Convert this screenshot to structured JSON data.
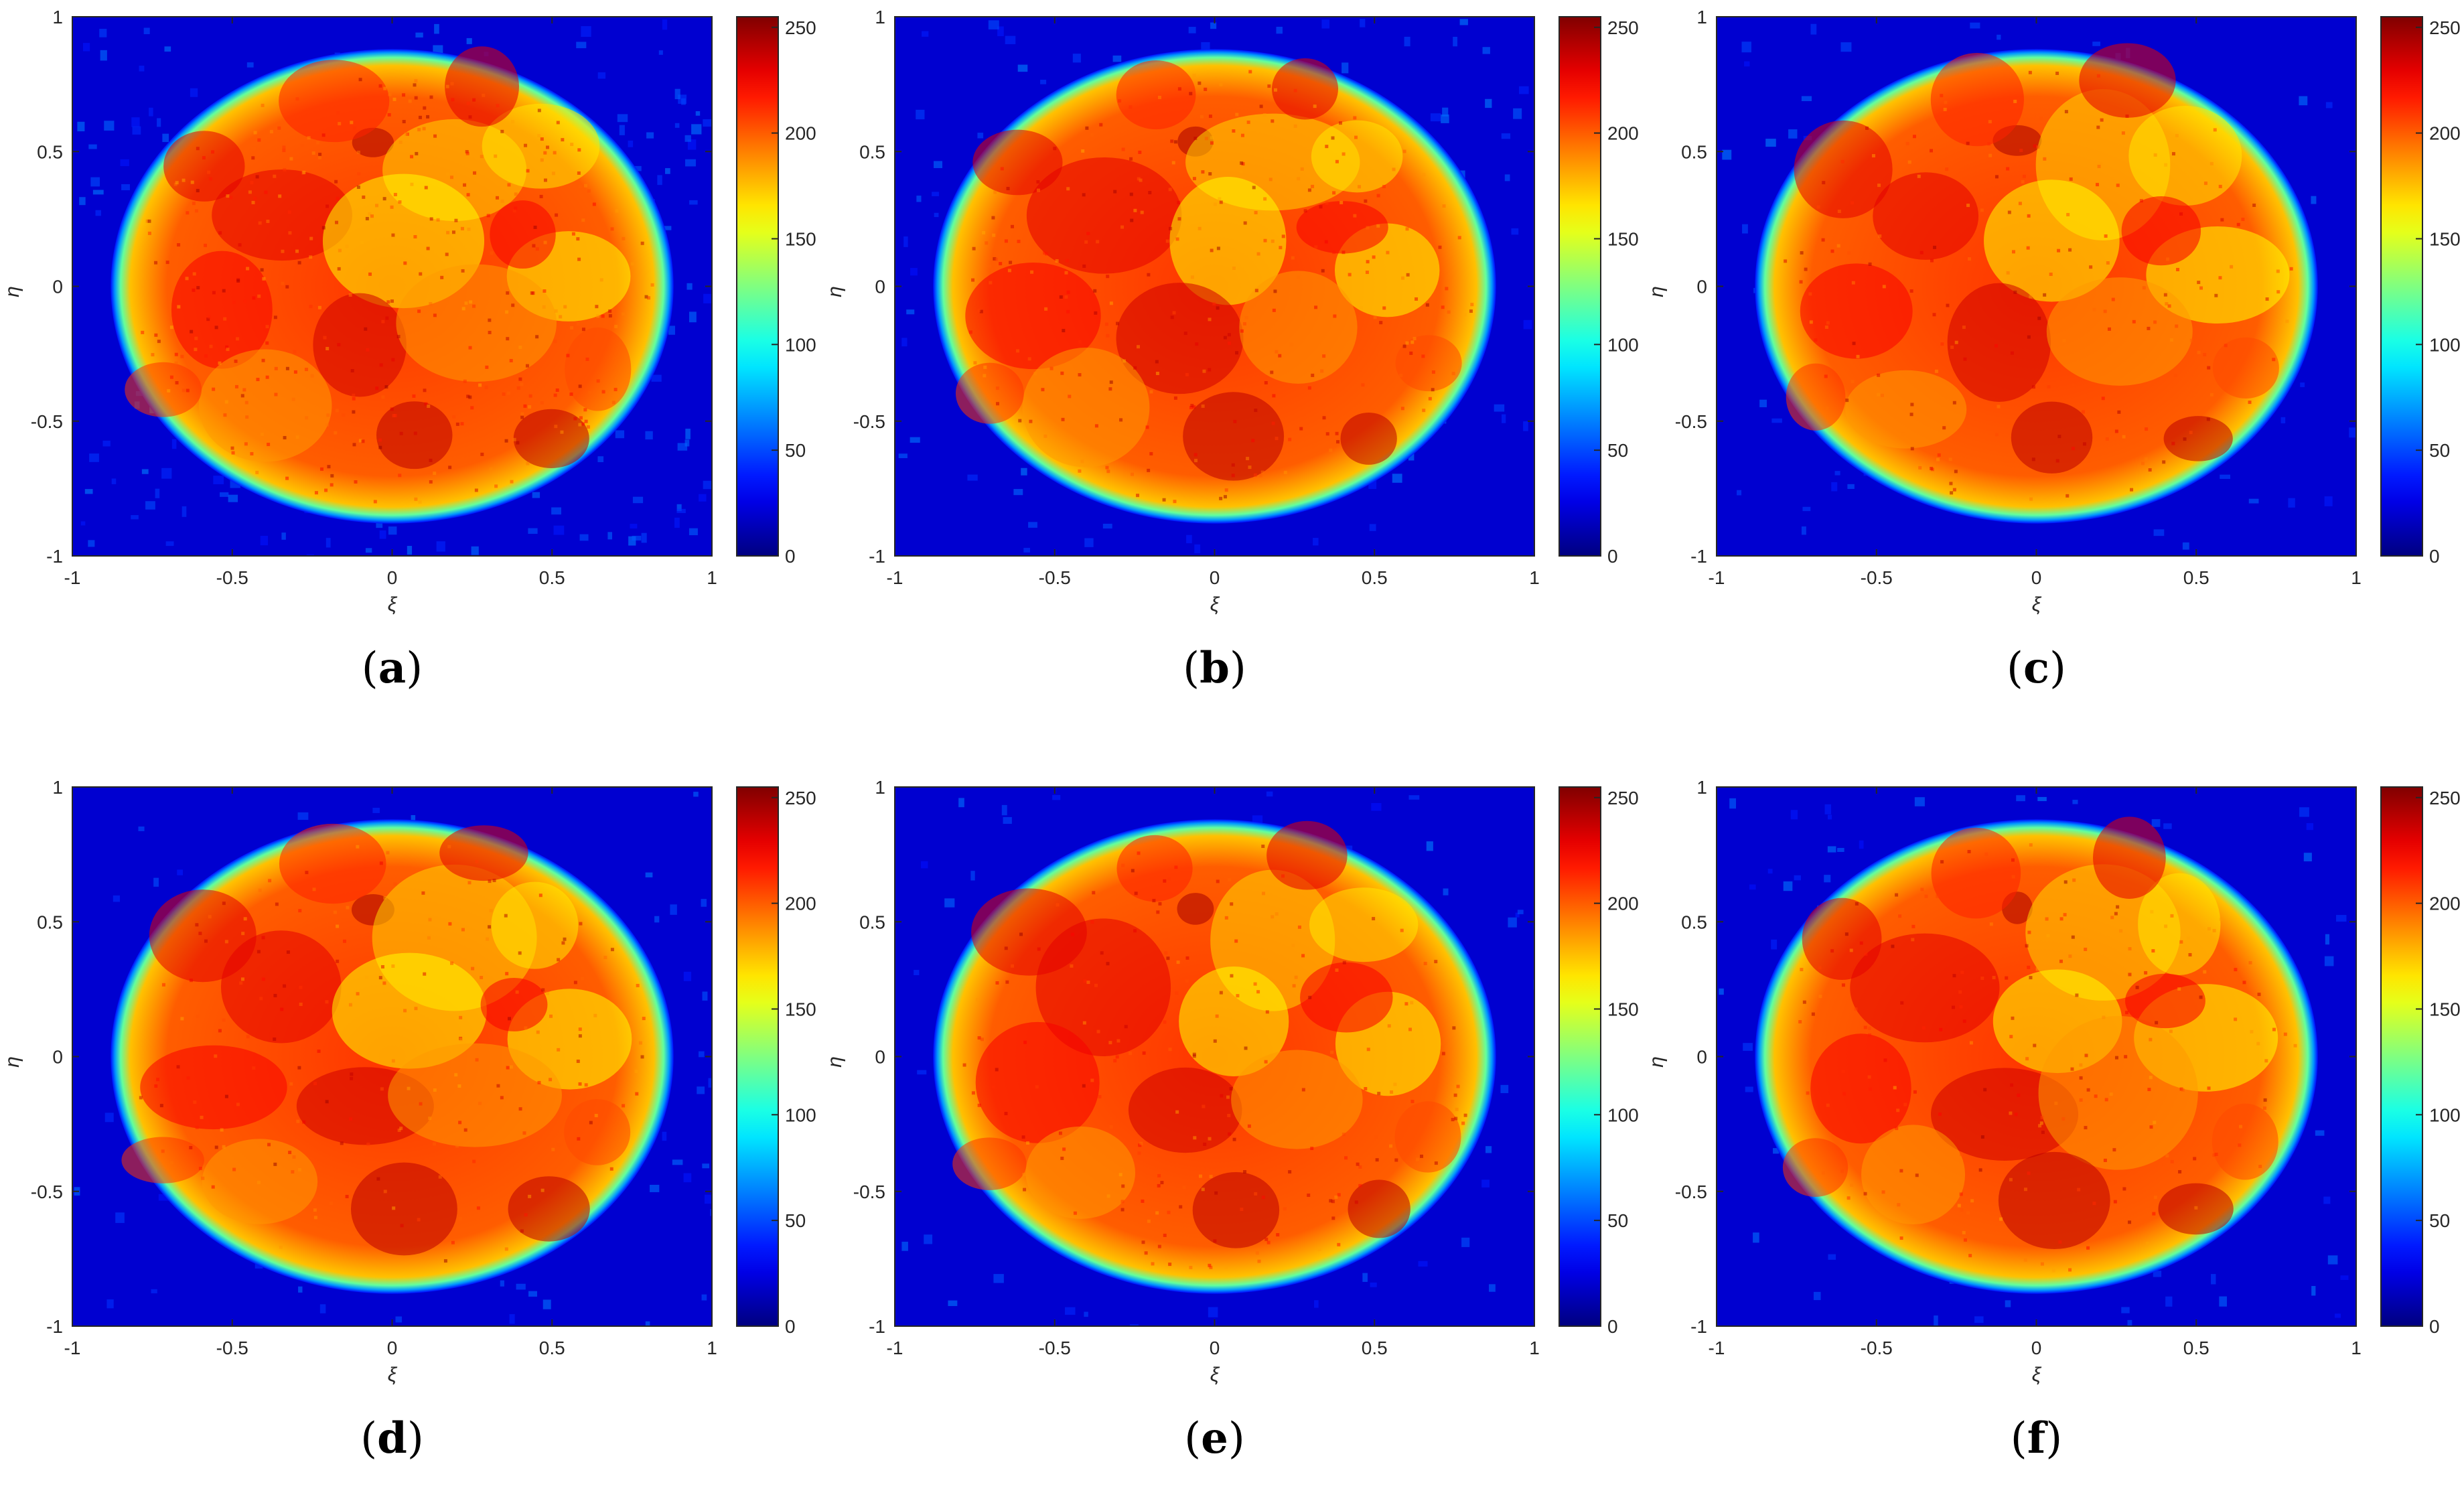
{
  "figure": {
    "panels": [
      {
        "label": "a",
        "caption": "(a)"
      },
      {
        "label": "b",
        "caption": "(b)"
      },
      {
        "label": "c",
        "caption": "(c)"
      },
      {
        "label": "d",
        "caption": "(d)"
      },
      {
        "label": "e",
        "caption": "(e)"
      },
      {
        "label": "f",
        "caption": "(f)"
      }
    ]
  },
  "chart_data": [
    {
      "type": "heatmap",
      "panel": "a",
      "xlabel": "ξ",
      "ylabel": "η",
      "xlim": [
        -1,
        1
      ],
      "ylim": [
        -1,
        1
      ],
      "xticks": [
        "-1",
        "-0.5",
        "0",
        "0.5",
        "1"
      ],
      "yticks": [
        "-1",
        "-0.5",
        "0",
        "0.5",
        "1"
      ],
      "colorbar": {
        "range": [
          0,
          255
        ],
        "ticks": [
          "0",
          "50",
          "100",
          "150",
          "200",
          "250"
        ],
        "colormap": "jet"
      },
      "noise": "high",
      "description_values": {
        "disk_radius": 0.88,
        "inside_intensity": 200,
        "background_intensity": 20
      }
    },
    {
      "type": "heatmap",
      "panel": "b",
      "xlabel": "ξ",
      "ylabel": "η",
      "xlim": [
        -1,
        1
      ],
      "ylim": [
        -1,
        1
      ],
      "xticks": [
        "-1",
        "-0.5",
        "0",
        "0.5",
        "1"
      ],
      "yticks": [
        "-1",
        "-0.5",
        "0",
        "0.5",
        "1"
      ],
      "colorbar": {
        "range": [
          0,
          255
        ],
        "ticks": [
          "0",
          "50",
          "100",
          "150",
          "200",
          "250"
        ],
        "colormap": "jet"
      },
      "noise": "medium",
      "description_values": {
        "disk_radius": 0.88,
        "inside_intensity": 200,
        "background_intensity": 20
      }
    },
    {
      "type": "heatmap",
      "panel": "c",
      "xlabel": "ξ",
      "ylabel": "η",
      "xlim": [
        -1,
        1
      ],
      "ylim": [
        -1,
        1
      ],
      "xticks": [
        "-1",
        "-0.5",
        "0",
        "0.5",
        "1"
      ],
      "yticks": [
        "-1",
        "-0.5",
        "0",
        "0.5",
        "1"
      ],
      "colorbar": {
        "range": [
          0,
          255
        ],
        "ticks": [
          "0",
          "50",
          "100",
          "150",
          "200",
          "250"
        ],
        "colormap": "jet"
      },
      "noise": "low",
      "description_values": {
        "disk_radius": 0.88,
        "inside_intensity": 200,
        "background_intensity": 20
      }
    },
    {
      "type": "heatmap",
      "panel": "d",
      "xlabel": "ξ",
      "ylabel": "η",
      "xlim": [
        -1,
        1
      ],
      "ylim": [
        -1,
        1
      ],
      "xticks": [
        "-1",
        "-0.5",
        "0",
        "0.5",
        "1"
      ],
      "yticks": [
        "-1",
        "-0.5",
        "0",
        "0.5",
        "1"
      ],
      "colorbar": {
        "range": [
          0,
          255
        ],
        "ticks": [
          "0",
          "50",
          "100",
          "150",
          "200",
          "250"
        ],
        "colormap": "jet"
      },
      "noise": "low",
      "description_values": {
        "disk_radius": 0.88,
        "inside_intensity": 200,
        "background_intensity": 20
      }
    },
    {
      "type": "heatmap",
      "panel": "e",
      "xlabel": "ξ",
      "ylabel": "η",
      "xlim": [
        -1,
        1
      ],
      "ylim": [
        -1,
        1
      ],
      "xticks": [
        "-1",
        "-0.5",
        "0",
        "0.5",
        "1"
      ],
      "yticks": [
        "-1",
        "-0.5",
        "0",
        "0.5",
        "1"
      ],
      "colorbar": {
        "range": [
          0,
          255
        ],
        "ticks": [
          "0",
          "50",
          "100",
          "150",
          "200",
          "250"
        ],
        "colormap": "jet"
      },
      "noise": "low",
      "description_values": {
        "disk_radius": 0.88,
        "inside_intensity": 200,
        "background_intensity": 20
      }
    },
    {
      "type": "heatmap",
      "panel": "f",
      "xlabel": "ξ",
      "ylabel": "η",
      "xlim": [
        -1,
        1
      ],
      "ylim": [
        -1,
        1
      ],
      "xticks": [
        "-1",
        "-0.5",
        "0",
        "0.5",
        "1"
      ],
      "yticks": [
        "-1",
        "-0.5",
        "0",
        "0.5",
        "1"
      ],
      "colorbar": {
        "range": [
          0,
          255
        ],
        "ticks": [
          "0",
          "50",
          "100",
          "150",
          "200",
          "250"
        ],
        "colormap": "jet"
      },
      "noise": "low",
      "description_values": {
        "disk_radius": 0.88,
        "inside_intensity": 200,
        "background_intensity": 20
      }
    }
  ]
}
